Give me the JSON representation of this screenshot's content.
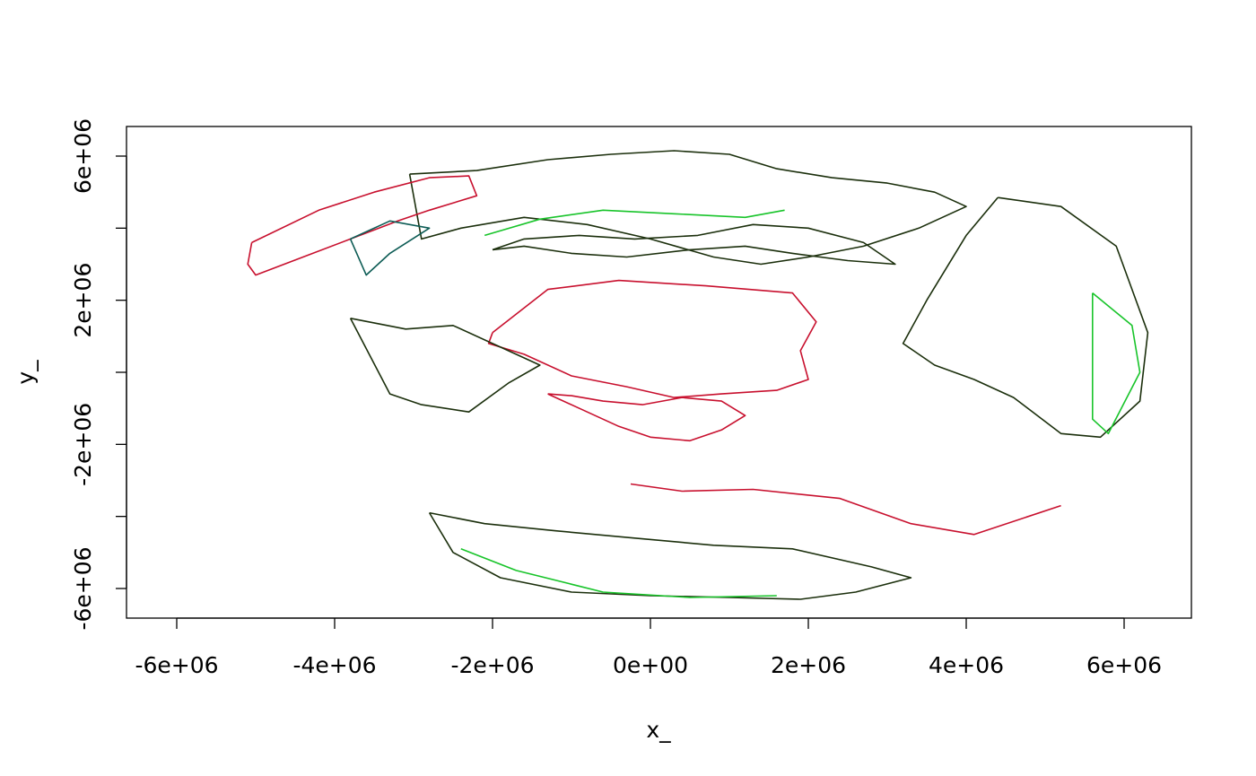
{
  "chart_data": {
    "type": "map",
    "description_of_axes": "projected coordinates",
    "xlabel": "x_",
    "ylabel": "y_",
    "xlim": [
      -6600000,
      6900000
    ],
    "ylim": [
      -6800000,
      6800000
    ],
    "x_ticks": [
      {
        "value": -6000000,
        "label": "-6e+06"
      },
      {
        "value": -4000000,
        "label": "-4e+06"
      },
      {
        "value": -2000000,
        "label": "-2e+06"
      },
      {
        "value": 0,
        "label": "0e+00"
      },
      {
        "value": 2000000,
        "label": "2e+06"
      },
      {
        "value": 4000000,
        "label": "4e+06"
      },
      {
        "value": 6000000,
        "label": "6e+06"
      }
    ],
    "y_ticks": [
      {
        "value": -6000000,
        "label": "-6e+06"
      },
      {
        "value": -4000000,
        "label": ""
      },
      {
        "value": -2000000,
        "label": "-2e+06"
      },
      {
        "value": 0,
        "label": ""
      },
      {
        "value": 2000000,
        "label": "2e+06"
      },
      {
        "value": 4000000,
        "label": ""
      },
      {
        "value": 6000000,
        "label": "6e+06"
      }
    ],
    "colors": {
      "dark": "#1b2f0c",
      "red": "#c8102e",
      "green": "#18c42a",
      "teal": "#0d5c55",
      "maroon": "#3a0010"
    },
    "series": [
      {
        "color_key": "dark",
        "x": [
          -3050000,
          -2200000,
          -1300000,
          -500000,
          300000,
          1000000,
          1600000,
          2300000,
          3000000,
          3600000,
          4000000,
          3400000,
          2700000,
          2000000,
          1400000,
          800000,
          0,
          -800000,
          -1600000,
          -2400000,
          -2900000,
          -3050000
        ],
        "y": [
          5500000,
          5600000,
          5900000,
          6050000,
          6150000,
          6050000,
          5650000,
          5400000,
          5250000,
          5000000,
          4600000,
          4000000,
          3500000,
          3200000,
          3000000,
          3200000,
          3700000,
          4100000,
          4300000,
          4000000,
          3700000,
          5500000
        ]
      },
      {
        "color_key": "dark",
        "x": [
          -2000000,
          -1600000,
          -900000,
          -200000,
          600000,
          1300000,
          2000000,
          2700000,
          3100000,
          2500000,
          1800000,
          1200000,
          500000,
          -300000,
          -1000000,
          -1600000,
          -2000000
        ],
        "y": [
          3400000,
          3700000,
          3800000,
          3700000,
          3800000,
          4100000,
          4000000,
          3600000,
          3000000,
          3100000,
          3300000,
          3500000,
          3400000,
          3200000,
          3300000,
          3500000,
          3400000
        ]
      },
      {
        "color_key": "green",
        "x": [
          -2100000,
          -1400000,
          -600000,
          300000,
          1200000,
          1700000
        ],
        "y": [
          3800000,
          4250000,
          4500000,
          4400000,
          4300000,
          4500000
        ]
      },
      {
        "color_key": "red",
        "x": [
          -5050000,
          -4200000,
          -3500000,
          -2800000,
          -2300000,
          -2200000,
          -2800000,
          -3200000,
          -3800000,
          -4400000,
          -5000000,
          -5100000,
          -5050000
        ],
        "y": [
          3600000,
          4500000,
          5000000,
          5400000,
          5450000,
          4900000,
          4500000,
          4200000,
          3700000,
          3200000,
          2700000,
          3000000,
          3600000
        ]
      },
      {
        "color_key": "teal",
        "x": [
          -3800000,
          -3300000,
          -2800000,
          -3300000,
          -3600000,
          -3800000
        ],
        "y": [
          3700000,
          4200000,
          4000000,
          3300000,
          2700000,
          3700000
        ]
      },
      {
        "color_key": "red",
        "x": [
          -2000000,
          -1300000,
          -400000,
          700000,
          1800000,
          2100000,
          1900000,
          2000000,
          1600000,
          900000,
          300000,
          -300000,
          -1000000,
          -1600000,
          -2050000,
          -2000000
        ],
        "y": [
          1100000,
          2300000,
          2550000,
          2400000,
          2200000,
          1400000,
          600000,
          -200000,
          -500000,
          -600000,
          -700000,
          -400000,
          -100000,
          500000,
          800000,
          1100000
        ]
      },
      {
        "color_key": "red",
        "x": [
          -1300000,
          -900000,
          -400000,
          0,
          500000,
          900000,
          1200000,
          900000,
          400000,
          -100000,
          -600000,
          -1000000,
          -1300000
        ],
        "y": [
          -600000,
          -1000000,
          -1500000,
          -1800000,
          -1900000,
          -1600000,
          -1200000,
          -800000,
          -700000,
          -900000,
          -800000,
          -650000,
          -600000
        ]
      },
      {
        "color_key": "red",
        "x": [
          -250000,
          400000,
          1300000,
          2400000,
          3300000,
          4100000,
          5200000
        ],
        "y": [
          -3100000,
          -3300000,
          -3250000,
          -3500000,
          -4200000,
          -4500000,
          -3700000
        ]
      },
      {
        "color_key": "dark",
        "x": [
          -3800000,
          -3100000,
          -2500000,
          -1900000,
          -1400000,
          -1800000,
          -2300000,
          -2900000,
          -3300000,
          -3800000
        ],
        "y": [
          1500000,
          1200000,
          1300000,
          700000,
          200000,
          -300000,
          -1100000,
          -900000,
          -600000,
          1500000
        ]
      },
      {
        "color_key": "dark",
        "x": [
          -2800000,
          -2100000,
          -1200000,
          -200000,
          800000,
          1800000,
          2800000,
          3300000,
          2600000,
          1900000,
          1000000,
          0,
          -1000000,
          -1900000,
          -2500000,
          -2800000
        ],
        "y": [
          -3900000,
          -4200000,
          -4400000,
          -4600000,
          -4800000,
          -4900000,
          -5400000,
          -5700000,
          -6100000,
          -6300000,
          -6250000,
          -6200000,
          -6100000,
          -5700000,
          -5000000,
          -3900000
        ]
      },
      {
        "color_key": "green",
        "x": [
          -2400000,
          -1700000,
          -600000,
          500000,
          1600000
        ],
        "y": [
          -4900000,
          -5500000,
          -6100000,
          -6250000,
          -6200000
        ]
      },
      {
        "color_key": "dark",
        "x": [
          4400000,
          5200000,
          5900000,
          6300000,
          6200000,
          5700000,
          5200000,
          4600000,
          4100000,
          3600000,
          3200000,
          3500000,
          4000000,
          4400000
        ],
        "y": [
          4850000,
          4600000,
          3500000,
          1100000,
          -800000,
          -1800000,
          -1700000,
          -700000,
          -200000,
          200000,
          800000,
          2000000,
          3800000,
          4850000
        ]
      },
      {
        "color_key": "green",
        "x": [
          5600000,
          6100000,
          6200000,
          5800000,
          5600000,
          5600000
        ],
        "y": [
          2200000,
          1300000,
          0,
          -1700000,
          -1300000,
          2200000
        ]
      }
    ]
  }
}
